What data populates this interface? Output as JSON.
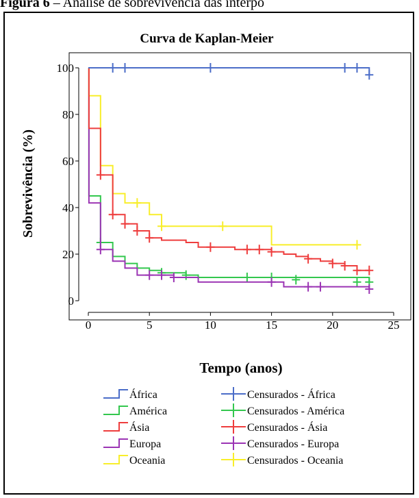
{
  "header": {
    "figure_label": "Figura 6",
    "caption": " – Análise de sobrevivência das interpo"
  },
  "chart_data": {
    "type": "line",
    "step": true,
    "title": "Curva de Kaplan-Meier",
    "xlabel": "Tempo (anos)",
    "ylabel": "Sobrevivência (%)",
    "xlim": [
      0,
      25
    ],
    "ylim": [
      0,
      100
    ],
    "xticks": [
      0,
      5,
      10,
      15,
      20,
      25
    ],
    "yticks": [
      0,
      20,
      40,
      60,
      80,
      100
    ],
    "grid": false,
    "legend_position": "bottom",
    "series": [
      {
        "name": "África",
        "censored_name": "Censurados - África",
        "color": "#4b6dc8",
        "steps": [
          [
            0,
            100
          ],
          [
            23,
            97
          ]
        ],
        "censored": [
          [
            2,
            100
          ],
          [
            3,
            100
          ],
          [
            10,
            100
          ],
          [
            21,
            100
          ],
          [
            22,
            100
          ],
          [
            23,
            97
          ]
        ]
      },
      {
        "name": "América",
        "censored_name": "Censurados - América",
        "color": "#33c74e",
        "steps": [
          [
            0,
            100
          ],
          [
            0.05,
            45
          ],
          [
            1,
            25
          ],
          [
            2,
            19
          ],
          [
            3,
            16
          ],
          [
            4,
            14
          ],
          [
            5,
            13
          ],
          [
            6,
            12
          ],
          [
            8,
            11
          ],
          [
            9,
            10
          ],
          [
            23,
            8
          ]
        ],
        "censored": [
          [
            1,
            25
          ],
          [
            6,
            12
          ],
          [
            8,
            11
          ],
          [
            13,
            10
          ],
          [
            15,
            10
          ],
          [
            17,
            9
          ],
          [
            22,
            8
          ],
          [
            23,
            8
          ]
        ]
      },
      {
        "name": "Ásia",
        "censored_name": "Censurados - Ásia",
        "color": "#ee3d3d",
        "steps": [
          [
            0,
            100
          ],
          [
            0.05,
            74
          ],
          [
            1,
            54
          ],
          [
            2,
            37
          ],
          [
            3,
            33
          ],
          [
            4,
            30
          ],
          [
            5,
            27
          ],
          [
            6,
            26
          ],
          [
            8,
            25
          ],
          [
            9,
            23
          ],
          [
            12,
            22
          ],
          [
            15,
            21
          ],
          [
            16,
            20
          ],
          [
            17,
            19
          ],
          [
            18,
            18
          ],
          [
            19,
            17
          ],
          [
            20,
            16
          ],
          [
            21,
            15
          ],
          [
            22,
            13
          ],
          [
            23,
            13
          ]
        ],
        "censored": [
          [
            1,
            54
          ],
          [
            2,
            37
          ],
          [
            3,
            33
          ],
          [
            4,
            30
          ],
          [
            5,
            27
          ],
          [
            10,
            23
          ],
          [
            13,
            22
          ],
          [
            14,
            22
          ],
          [
            15,
            21
          ],
          [
            18,
            18
          ],
          [
            20,
            16
          ],
          [
            21,
            15
          ],
          [
            22,
            13
          ],
          [
            23,
            13
          ]
        ]
      },
      {
        "name": "Europa",
        "censored_name": "Censurados - Europa",
        "color": "#9b34b4",
        "steps": [
          [
            0,
            100
          ],
          [
            0.05,
            42
          ],
          [
            1,
            22
          ],
          [
            2,
            17
          ],
          [
            3,
            14
          ],
          [
            4,
            11
          ],
          [
            7,
            10
          ],
          [
            9,
            8
          ],
          [
            15,
            8
          ],
          [
            16,
            6
          ],
          [
            23,
            5
          ]
        ],
        "censored": [
          [
            1,
            22
          ],
          [
            5,
            11
          ],
          [
            6,
            11
          ],
          [
            7,
            10
          ],
          [
            15,
            8
          ],
          [
            18,
            6
          ],
          [
            19,
            6
          ],
          [
            23,
            5
          ]
        ]
      },
      {
        "name": "Oceania",
        "censored_name": "Censurados - Oceania",
        "color": "#f8ee2a",
        "steps": [
          [
            0,
            100
          ],
          [
            0.05,
            88
          ],
          [
            1,
            58
          ],
          [
            2,
            46
          ],
          [
            3,
            42
          ],
          [
            5,
            37
          ],
          [
            6,
            32
          ],
          [
            15,
            24
          ],
          [
            22,
            24
          ]
        ],
        "censored": [
          [
            4,
            42
          ],
          [
            6,
            32
          ],
          [
            11,
            32
          ],
          [
            22,
            24
          ]
        ]
      }
    ]
  }
}
